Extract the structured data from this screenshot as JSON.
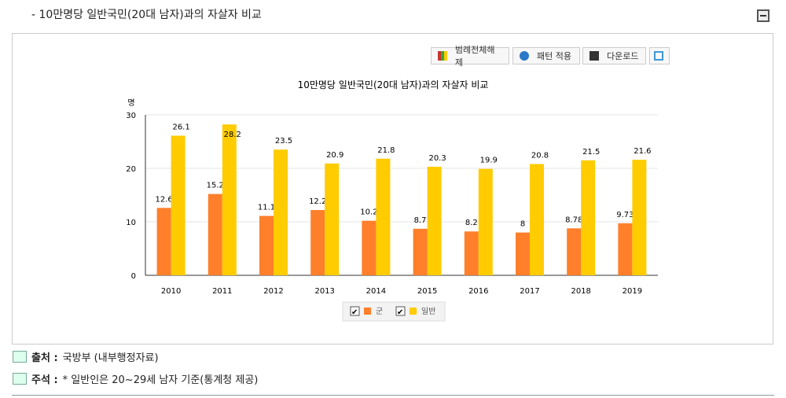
{
  "section_title": "- 10만명당 일반국민(20대 남자)과의 자살자 비교",
  "toolbar": {
    "legend_off": "범례전체해제",
    "pattern": "패턴 적용",
    "download": "다운로드"
  },
  "chart_data": {
    "type": "bar",
    "title": "10만명당 일반국민(20대 남자)과의 자살자 비교",
    "ylabel": "명",
    "xlabel": "",
    "ylim": [
      0,
      30
    ],
    "yticks": [
      0,
      10,
      20,
      30
    ],
    "categories": [
      "2010",
      "2011",
      "2012",
      "2013",
      "2014",
      "2015",
      "2016",
      "2017",
      "2018",
      "2019"
    ],
    "series": [
      {
        "name": "군",
        "color": "#FF7F2A",
        "values": [
          12.6,
          15.2,
          11.1,
          12.2,
          10.2,
          8.7,
          8.2,
          8,
          8.78,
          9.73
        ]
      },
      {
        "name": "일반",
        "color": "#FFCC00",
        "values": [
          26.1,
          28.2,
          23.5,
          20.9,
          21.8,
          20.3,
          19.9,
          20.8,
          21.5,
          21.6
        ]
      }
    ],
    "legend_position": "bottom"
  },
  "notes": [
    {
      "label": "출처 :",
      "text": "국방부 (내부행정자료)"
    },
    {
      "label": "주석 :",
      "text": "* 일반인은 20~29세 남자 기준(통계청 제공)"
    }
  ]
}
